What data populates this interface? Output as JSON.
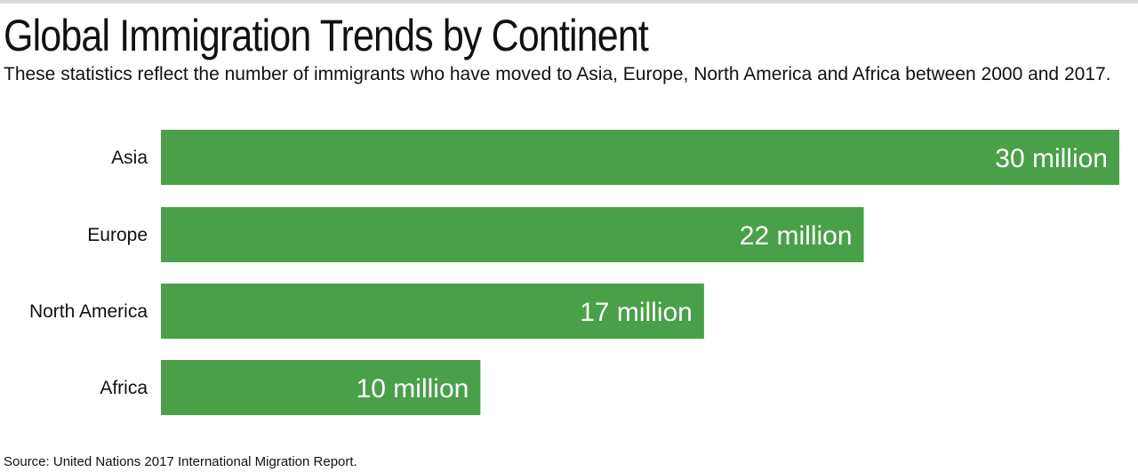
{
  "title": "Global Immigration Trends by Continent",
  "subtitle": "These statistics reflect the number of immigrants who have moved to Asia, Europe, North America and Africa between 2000 and 2017.",
  "source": "Source: United Nations 2017 International Migration Report.",
  "colors": {
    "bar": "#4aa048",
    "value_text": "#ffffff",
    "rule": "#d9d9d9"
  },
  "chart_data": {
    "type": "bar",
    "orientation": "horizontal",
    "categories": [
      "Asia",
      "Europe",
      "North America",
      "Africa"
    ],
    "values": [
      30,
      22,
      17,
      10
    ],
    "value_labels": [
      "30 million",
      "22 million",
      "17 million",
      "10 million"
    ],
    "xlim": [
      0,
      30
    ],
    "grid": false
  }
}
